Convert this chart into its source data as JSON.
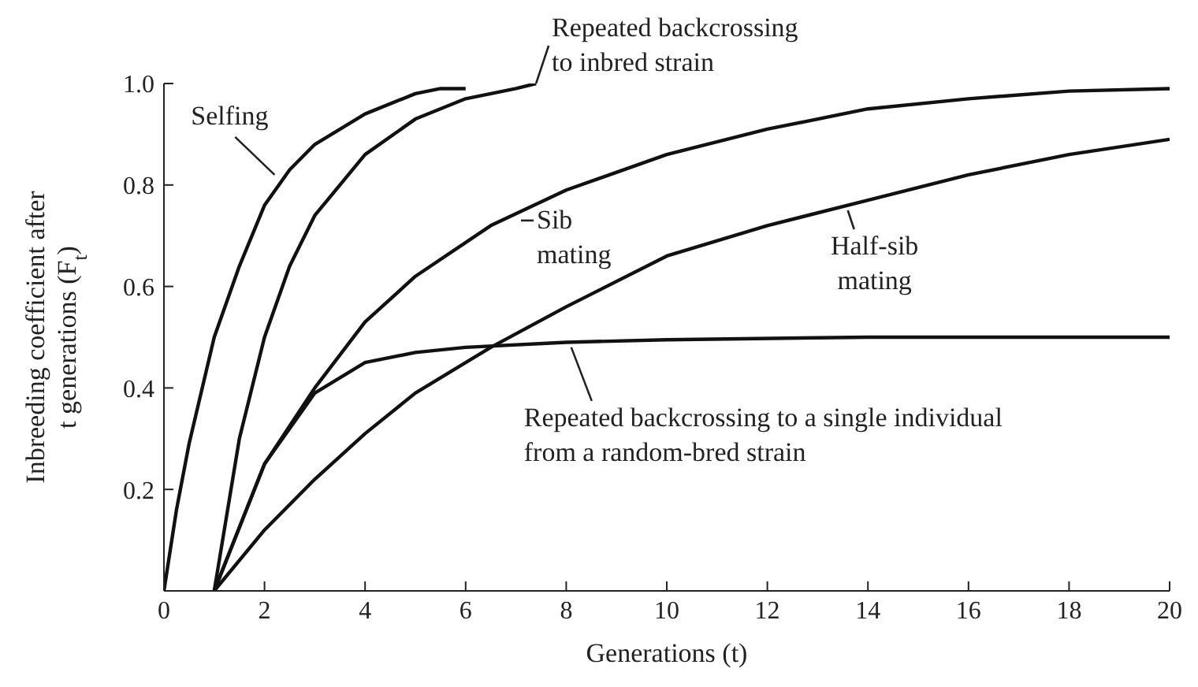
{
  "chart_data": {
    "type": "line",
    "xlabel": "Generations (t)",
    "ylabel": "Inbreeding coefficient after\nt generations (F$_{t}$)",
    "xlim": [
      0,
      20
    ],
    "ylim": [
      0,
      1
    ],
    "xticks": [
      0,
      2,
      4,
      6,
      8,
      10,
      12,
      14,
      16,
      18,
      20
    ],
    "yticks": [
      0.2,
      0.4,
      0.6,
      0.8,
      {
        "value": 1,
        "label": "1.0"
      }
    ],
    "grid": false,
    "legend": false,
    "marker": "none",
    "line_style": "solid",
    "series": [
      {
        "color": "#111111",
        "x": [
          0,
          0.25,
          0.5,
          1,
          1.5,
          2,
          2.5,
          3,
          4,
          5,
          5.5,
          6
        ],
        "values": [
          0,
          0.16,
          0.29,
          0.5,
          0.64,
          0.76,
          0.83,
          0.88,
          0.94,
          0.98,
          0.99,
          0.99
        ]
      },
      {
        "color": "#111111",
        "x": [
          1,
          1.5,
          2,
          2.5,
          3,
          4,
          5,
          6,
          7,
          7.4
        ],
        "values": [
          0,
          0.3,
          0.5,
          0.64,
          0.74,
          0.86,
          0.93,
          0.97,
          0.99,
          1
        ]
      },
      {
        "color": "#111111",
        "x": [
          1,
          2,
          3,
          4,
          5,
          6.5,
          8,
          10,
          12,
          14,
          16,
          18,
          20
        ],
        "values": [
          0,
          0.25,
          0.4,
          0.53,
          0.62,
          0.72,
          0.79,
          0.86,
          0.91,
          0.95,
          0.97,
          0.985,
          0.99
        ]
      },
      {
        "color": "#111111",
        "x": [
          1,
          2,
          3,
          4,
          5,
          6.5,
          8,
          10,
          12,
          14,
          16,
          18,
          20
        ],
        "values": [
          0,
          0.12,
          0.22,
          0.31,
          0.39,
          0.48,
          0.56,
          0.66,
          0.72,
          0.77,
          0.82,
          0.86,
          0.89
        ]
      },
      {
        "color": "#111111",
        "x": [
          1,
          2,
          3,
          4,
          5,
          6,
          8,
          10,
          14,
          20
        ],
        "values": [
          0,
          0.25,
          0.39,
          0.45,
          0.47,
          0.48,
          0.49,
          0.495,
          0.5,
          0.5
        ]
      }
    ],
    "annotations": [
      {
        "text": "Selfing",
        "x": 2.2,
        "y": 0.82
      },
      {
        "text": "Repeated backcrossing\nto inbred strain",
        "x": 7.4,
        "y": 1
      },
      {
        "text": "Sib\nmating",
        "x": 7.1,
        "y": 0.73
      },
      {
        "text": "Half-sib\nmating",
        "x": 13.6,
        "y": 0.75
      },
      {
        "text": "Repeated backcrossing to a single individual\nfrom a random-bred strain",
        "x": 8.1,
        "y": 0.48
      }
    ]
  }
}
